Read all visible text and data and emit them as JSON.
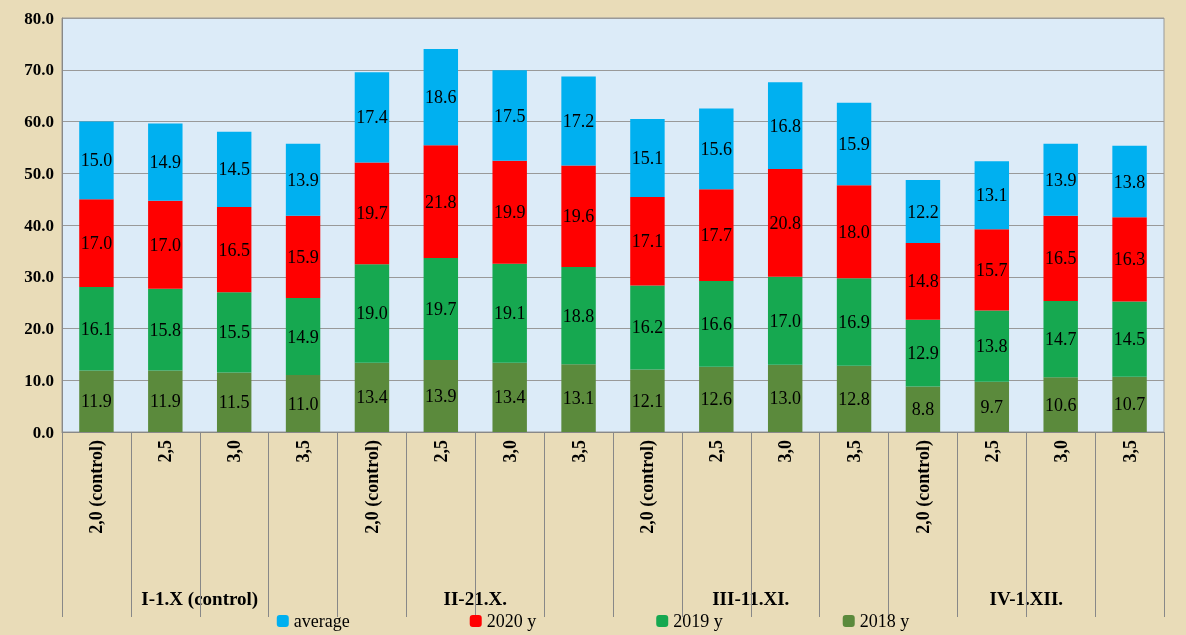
{
  "chart_data": {
    "type": "bar",
    "stacked": true,
    "categories": [
      "2,0 (control)",
      "2,5",
      "3,0",
      "3,5",
      "2,0 (control)",
      "2,5",
      "3,0",
      "3,5",
      "2,0 (control)",
      "2,5",
      "3,0",
      "3,5",
      "2,0 (control)",
      "2,5",
      "3,0",
      "3,5"
    ],
    "annotations": [
      "I-1.X (control)",
      "II-21.X.",
      "III-11.XI.",
      "IV-1.XII."
    ],
    "series": [
      {
        "name": "2018 y",
        "color": "#5b8a3c",
        "values": [
          11.9,
          11.9,
          11.5,
          11.0,
          13.4,
          13.9,
          13.4,
          13.1,
          12.1,
          12.6,
          13.0,
          12.8,
          8.8,
          9.7,
          10.6,
          10.7
        ],
        "value_labels": [
          "11.9",
          "11.9",
          "11.5",
          "11.0",
          "13.4",
          "13.9",
          "13.4",
          "13.1",
          "12.1",
          "12.6",
          "13.0",
          "12.8",
          "8.8",
          "9.7",
          "10.6",
          "10.7"
        ]
      },
      {
        "name": "2019 y",
        "color": "#16a850",
        "values": [
          16.1,
          15.8,
          15.5,
          14.9,
          19.0,
          19.7,
          19.1,
          18.8,
          16.2,
          16.6,
          17.0,
          16.9,
          12.9,
          13.8,
          14.7,
          14.5
        ],
        "value_labels": [
          "16.1",
          "15.8",
          "15.5",
          "14.9",
          "19.0",
          "19.7",
          "19.1",
          "18.8",
          "16.2",
          "16.6",
          "17.0",
          "16.9",
          "12.9",
          "13.8",
          "14.7",
          "14.5"
        ]
      },
      {
        "name": "2020 y",
        "color": "#ff0000",
        "values": [
          17.0,
          17.0,
          16.5,
          15.9,
          19.7,
          21.8,
          19.9,
          19.6,
          17.1,
          17.7,
          20.8,
          18.0,
          14.8,
          15.7,
          16.5,
          16.3
        ],
        "value_labels": [
          "17.0",
          "17.0",
          "16.5",
          "15.9",
          "19.7",
          "21.8",
          "19.9",
          "19.6",
          "17.1",
          "17.7",
          "20.8",
          "18.0",
          "14.8",
          "15.7",
          "16.5",
          "16.3"
        ]
      },
      {
        "name": "average",
        "color": "#00b0f0",
        "values": [
          15.0,
          14.9,
          14.5,
          13.9,
          17.4,
          18.6,
          17.5,
          17.2,
          15.1,
          15.6,
          16.8,
          15.9,
          12.2,
          13.1,
          13.9,
          13.8
        ],
        "value_labels": [
          "15.0",
          "14.9",
          "14.5",
          "13.9",
          "17.4",
          "18.6",
          "17.5",
          "17.2",
          "15.1",
          "15.6",
          "16.8",
          "15.9",
          "12.2",
          "13.1",
          "13.9",
          "13.8"
        ]
      }
    ],
    "ylim": [
      0,
      80
    ],
    "yticks": [
      {
        "value": 0,
        "label": "0.0"
      },
      {
        "value": 10,
        "label": "10.0"
      },
      {
        "value": 20,
        "label": "20.0"
      },
      {
        "value": 30,
        "label": "30.0"
      },
      {
        "value": 40,
        "label": "40.0"
      },
      {
        "value": 50,
        "label": "50.0"
      },
      {
        "value": 60,
        "label": "60.0"
      },
      {
        "value": 70,
        "label": "70.0"
      },
      {
        "value": 80,
        "label": "80.0"
      }
    ],
    "grid": "y",
    "legend": "bottom"
  }
}
